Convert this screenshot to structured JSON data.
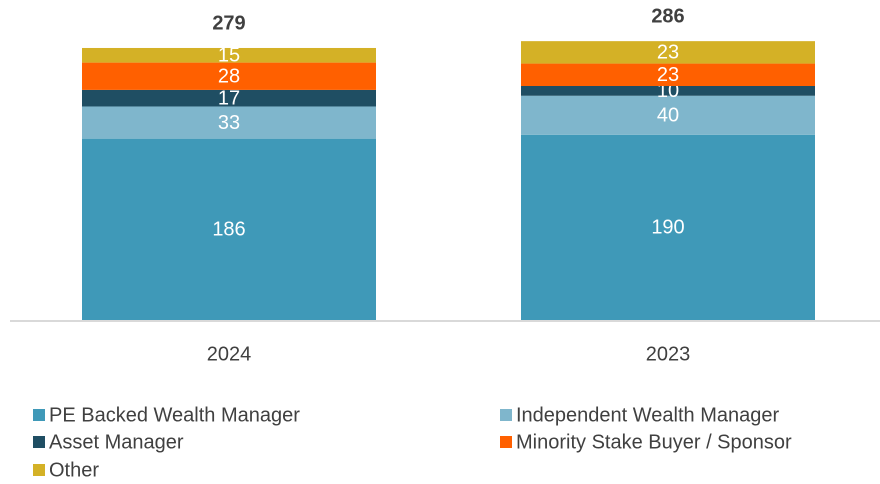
{
  "chart_data": {
    "type": "stacked_bar",
    "categories": [
      "2024",
      "2023"
    ],
    "series": [
      {
        "name": "PE Backed Wealth Manager",
        "color": "#3f99b8",
        "values": [
          186,
          190
        ]
      },
      {
        "name": "Independent Wealth Manager",
        "color": "#7fb6cc",
        "values": [
          33,
          40
        ]
      },
      {
        "name": "Asset Manager",
        "color": "#1f4e63",
        "values": [
          17,
          10
        ]
      },
      {
        "name": "Minority Stake Buyer / Sponsor",
        "color": "#ff6000",
        "values": [
          28,
          23
        ]
      },
      {
        "name": "Other",
        "color": "#d4b126",
        "values": [
          15,
          23
        ]
      }
    ],
    "totals": [
      279,
      286
    ],
    "ylim": [
      0,
      300
    ]
  }
}
